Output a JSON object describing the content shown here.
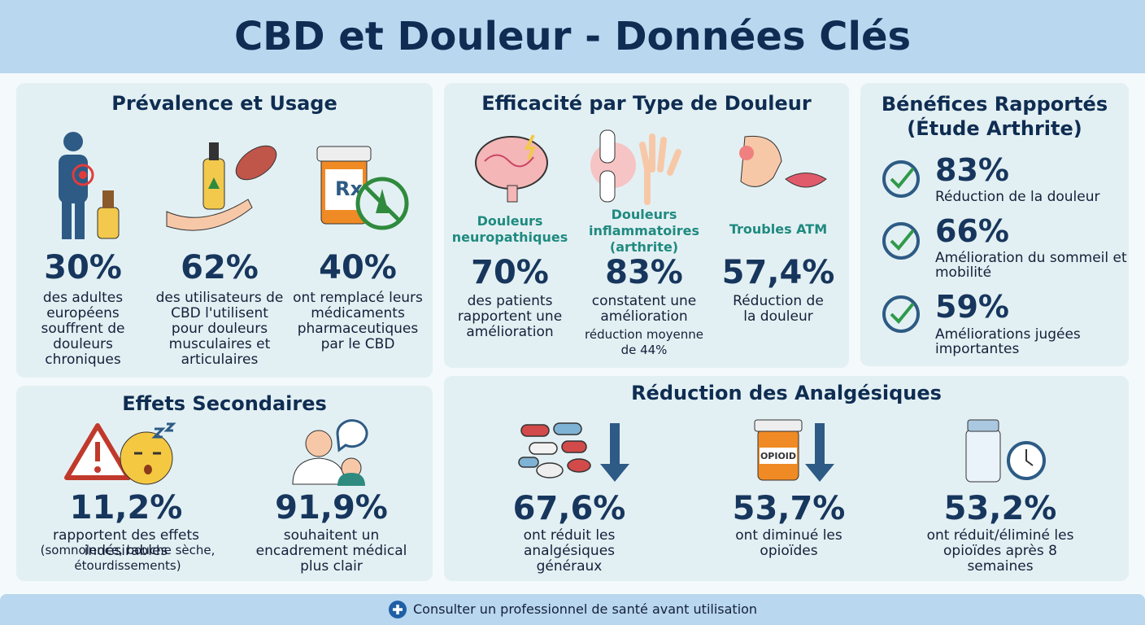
{
  "header": {
    "title": "CBD et Douleur - Données Clés"
  },
  "prevalence": {
    "title": "Prévalence et Usage",
    "items": [
      {
        "value": "30%",
        "text": "des adultes européens souffrent de douleurs chroniques"
      },
      {
        "value": "62%",
        "text": "des utilisateurs de CBD l'utilisent pour douleurs musculaires et articulaires"
      },
      {
        "value": "40%",
        "text": "ont remplacé leurs médicaments pharmaceutiques par le CBD",
        "icon_label": "Rx"
      }
    ]
  },
  "efficacy": {
    "title": "Efficacité par Type de Douleur",
    "items": [
      {
        "label": "Douleurs neuropathiques",
        "value": "70%",
        "text": "des patients rapportent une amélioration"
      },
      {
        "label": "Douleurs inflammatoires (arthrite)",
        "value": "83%",
        "text": "constatent une amélioration",
        "note": "réduction moyenne de 44%"
      },
      {
        "label": "Troubles ATM",
        "value": "57,4%",
        "text": "Réduction de la douleur"
      }
    ]
  },
  "benefits": {
    "title": "Bénéfices Rapportés (Étude Arthrite)",
    "items": [
      {
        "value": "83%",
        "text": "Réduction de la douleur"
      },
      {
        "value": "66%",
        "text": "Amélioration du sommeil et mobilité"
      },
      {
        "value": "59%",
        "text": "Améliorations jugées importantes"
      }
    ]
  },
  "side_effects": {
    "title": "Effets Secondaires",
    "items": [
      {
        "value": "11,2%",
        "text": "rapportent des effets indésirables",
        "note": "(somnolence, bouche sèche, étourdissements)"
      },
      {
        "value": "91,9%",
        "text": "souhaitent un encadrement médical plus clair"
      }
    ]
  },
  "analgesics": {
    "title": "Réduction des Analgésiques",
    "items": [
      {
        "value": "67,6%",
        "text": "ont réduit les analgésiques généraux"
      },
      {
        "value": "53,7%",
        "text": "ont diminué les opioïdes",
        "icon_label": "OPIOID"
      },
      {
        "value": "53,2%",
        "text": "ont réduit/éliminé les opioïdes après 8 semaines"
      }
    ]
  },
  "footer": {
    "text": "Consulter un professionnel de santé avant utilisation"
  }
}
